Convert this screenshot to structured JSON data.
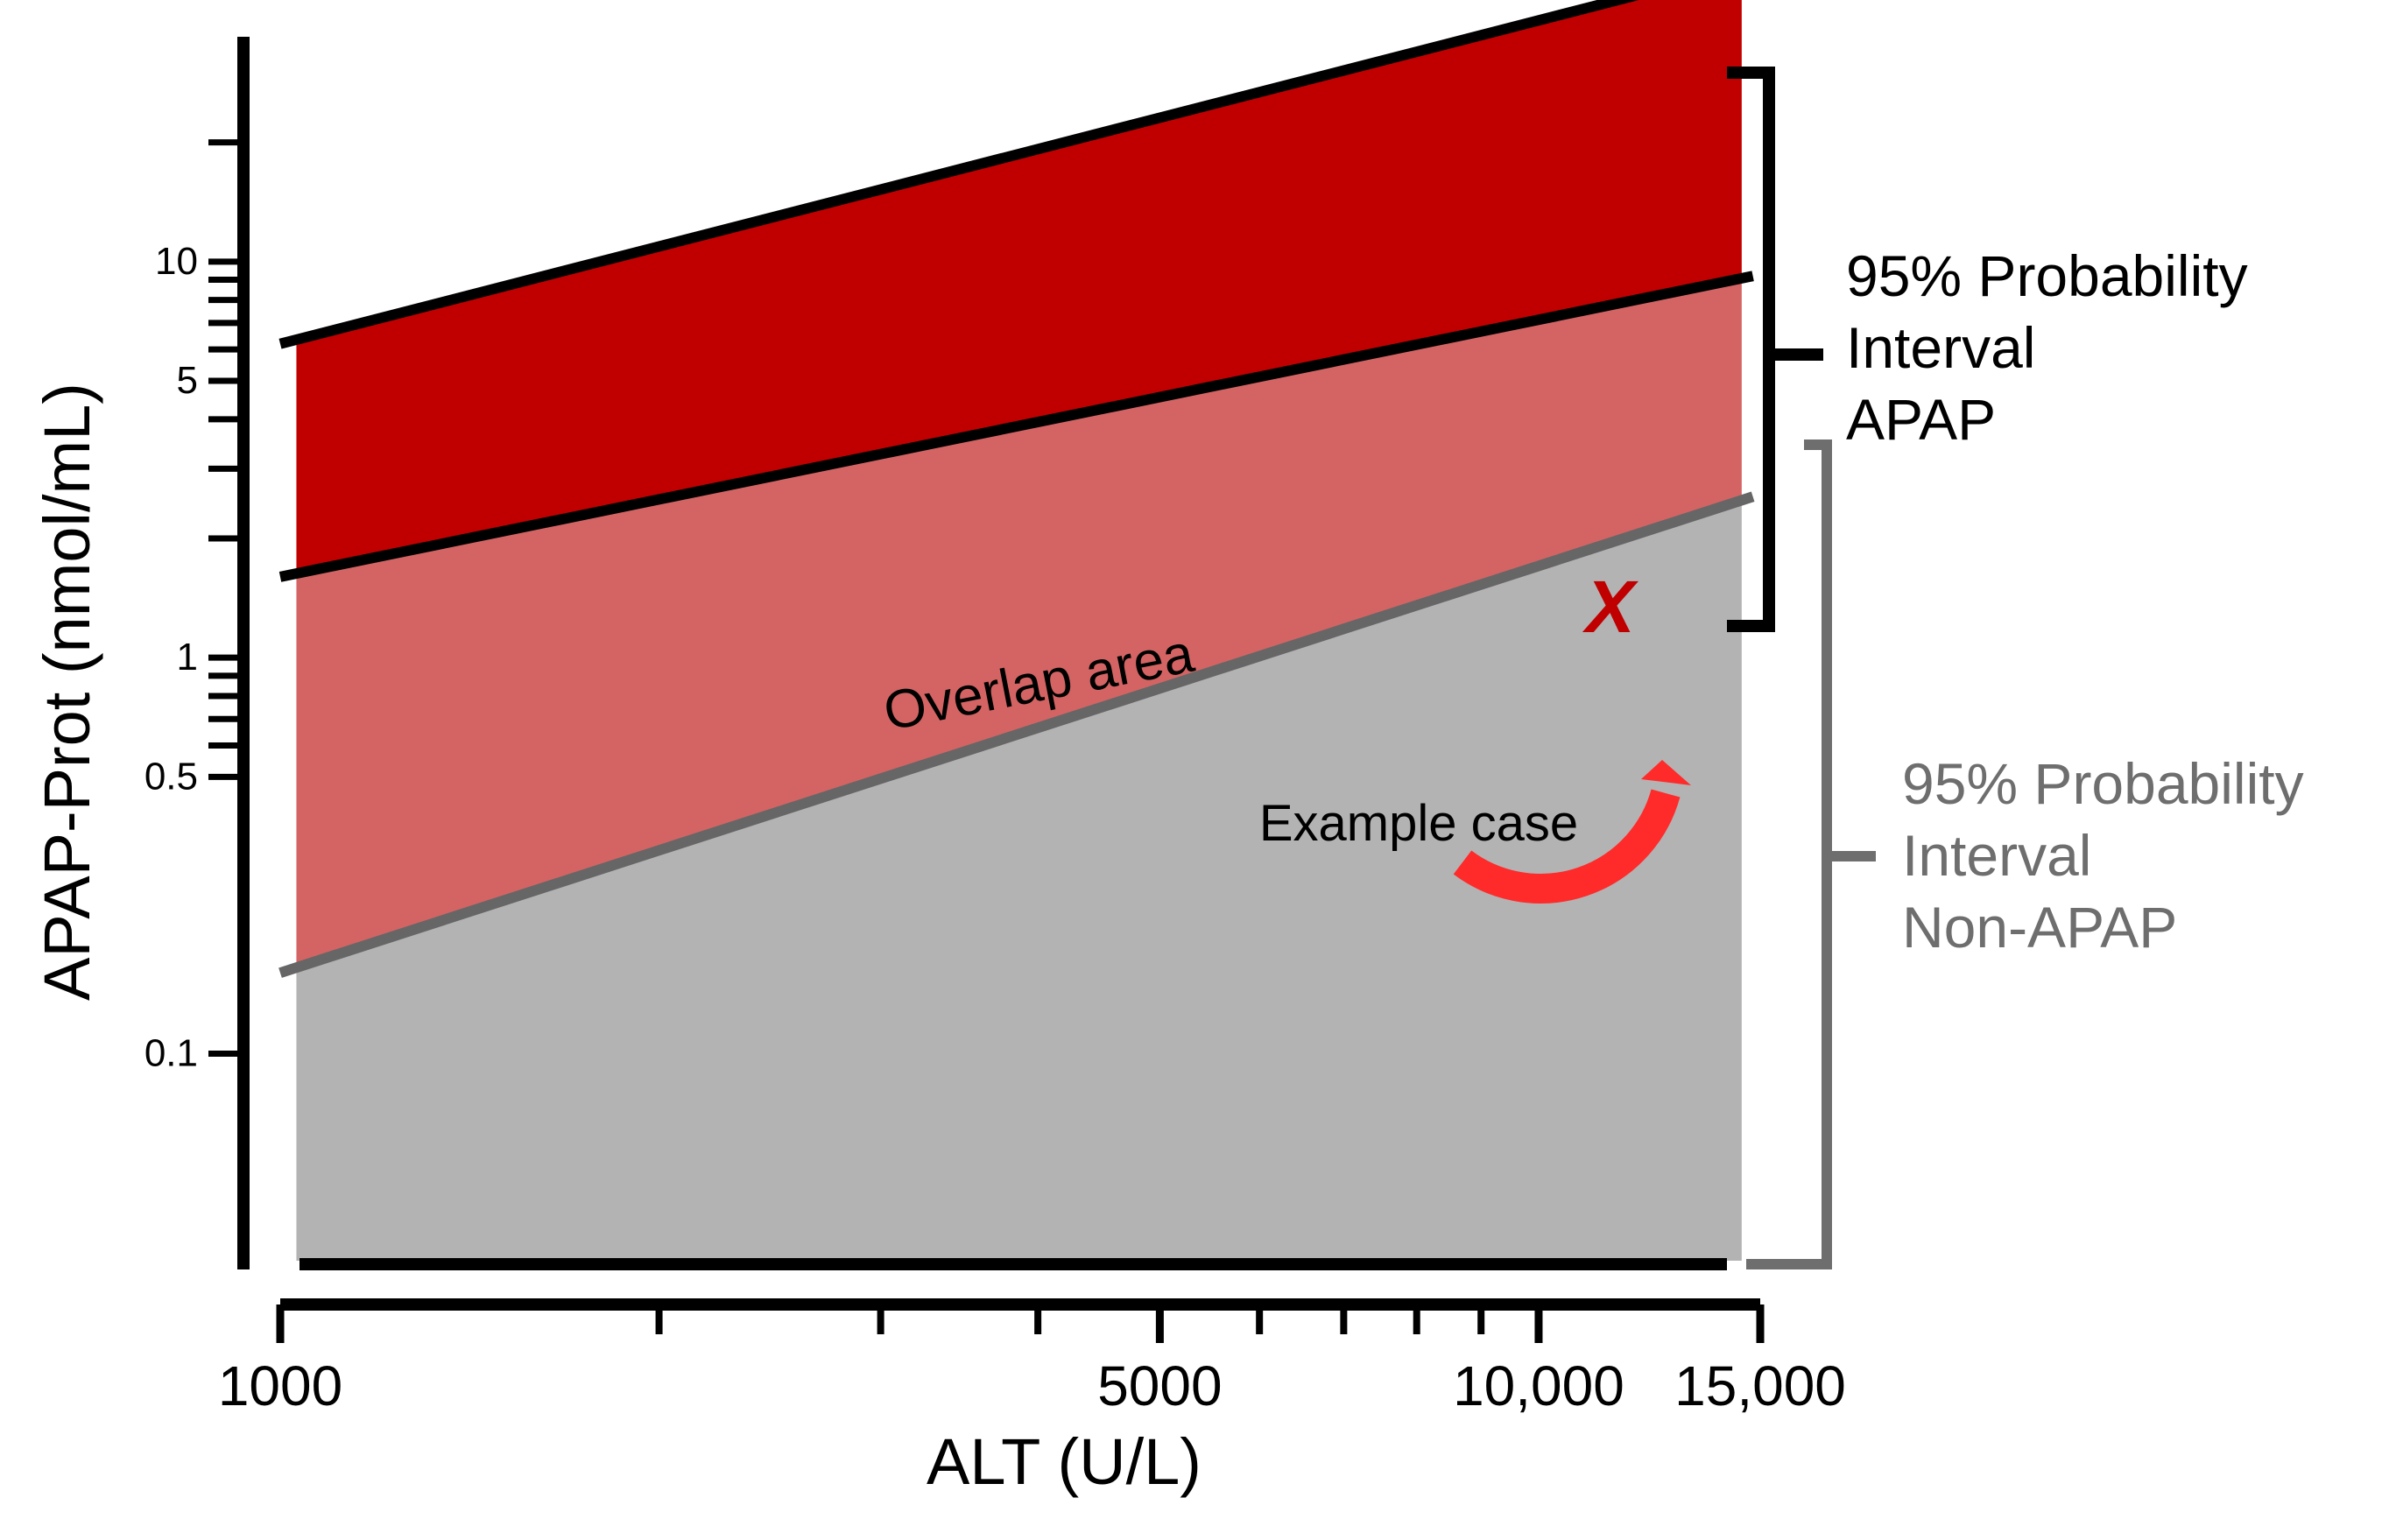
{
  "chart_data": {
    "type": "area",
    "xlabel": "ALT (U/L)",
    "ylabel": "APAP-Prot (nmol/mL)",
    "x_scale": "log",
    "y_scale": "log",
    "xlim": [
      1000,
      15000
    ],
    "ylim": [
      0.03,
      30
    ],
    "x_tick_labels": [
      {
        "value": 1000,
        "label": "1000"
      },
      {
        "value": 5000,
        "label": "5000"
      },
      {
        "value": 10000,
        "label": "10,000"
      },
      {
        "value": 15000,
        "label": "15,000"
      }
    ],
    "x_minor_ticks": [
      2000,
      3000,
      4000,
      6000,
      7000,
      8000,
      9000
    ],
    "y_tick_labels": [
      {
        "value": 0.1,
        "label": "0.1"
      },
      {
        "value": 0.5,
        "label": "0.5"
      },
      {
        "value": 1,
        "label": "1"
      },
      {
        "value": 5,
        "label": "5"
      },
      {
        "value": 10,
        "label": "10"
      }
    ],
    "y_minor_ticks": [
      0.6,
      0.7,
      0.8,
      0.9,
      2,
      3,
      4,
      6,
      7,
      8,
      9,
      20
    ],
    "grid": false,
    "bands": [
      {
        "id": "apap-upper",
        "color": "#C00000",
        "x": [
          1030,
          14500
        ],
        "lower": [
          1.6,
          9.2
        ],
        "upper": [
          6.2,
          55
        ]
      },
      {
        "id": "overlap",
        "color": "#D46464",
        "x": [
          1030,
          14500
        ],
        "lower": [
          0.16,
          2.5
        ],
        "upper": [
          1.6,
          9.2
        ]
      },
      {
        "id": "non-apap",
        "color": "#B3B3B3",
        "x": [
          1030,
          14500
        ],
        "lower": [
          0.03,
          0.03
        ],
        "upper": [
          0.16,
          2.5
        ]
      }
    ],
    "lines": [
      {
        "id": "apap-upper-bound",
        "color": "#000000",
        "x": [
          1000,
          14800
        ],
        "y": [
          6.2,
          56
        ]
      },
      {
        "id": "apap-lower-bound",
        "color": "#000000",
        "x": [
          1000,
          14800
        ],
        "y": [
          1.6,
          9.2
        ]
      },
      {
        "id": "non-apap-upper-bound",
        "color": "#666666",
        "x": [
          1000,
          14800
        ],
        "y": [
          0.16,
          2.55
        ]
      }
    ],
    "annotations": {
      "overlap_label": "Overlap area",
      "example_label": "Example case",
      "example_marker": "X",
      "example_marker_color": "#C00000",
      "arrow_color": "#FF2A2A",
      "example_point": {
        "x": 11400,
        "y": 1.35
      }
    },
    "legend": [
      {
        "lines": [
          "95% Probability",
          "Interval",
          "APAP"
        ],
        "color": "#000000",
        "placement": "right-top"
      },
      {
        "lines": [
          "95% Probability",
          "Interval",
          "Non-APAP"
        ],
        "color": "#6E6E6E",
        "placement": "right-bottom"
      }
    ]
  }
}
